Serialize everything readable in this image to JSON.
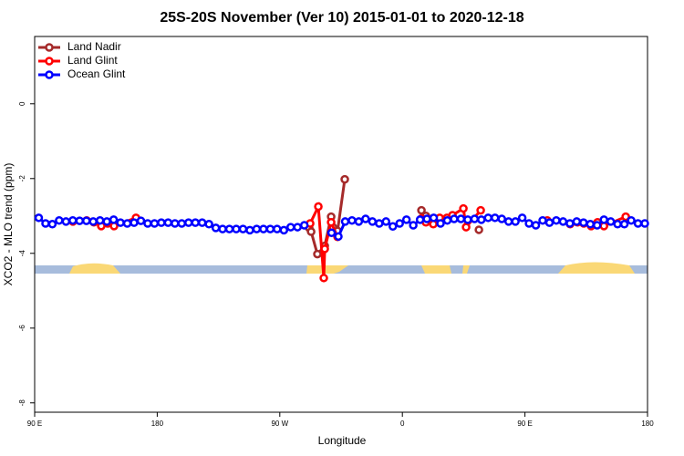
{
  "chart_data": {
    "type": "line",
    "title": "25S-20S November (Ver 10)   2015-01-01 to 2020-12-18",
    "x_label": "Longitude",
    "y_label": "XCO2 - MLO trend (ppm)",
    "xlim": [
      90,
      540
    ],
    "ylim": [
      -8.25,
      1.8
    ],
    "xticks": [
      {
        "value": 90,
        "label": "90 E"
      },
      180,
      {
        "value": 270,
        "label": "90 W"
      },
      {
        "value": 360,
        "label": "0"
      },
      {
        "value": 450,
        "label": "90 E"
      },
      {
        "value": 540,
        "label": "180"
      }
    ],
    "yticks": [
      -8,
      -6,
      -4,
      -2,
      0
    ],
    "legend": "upper left",
    "grid": false,
    "series": [
      {
        "name": "Land Nadir",
        "color": "#a52a2a",
        "x": [
          291.6,
          293,
          297.6,
          303,
          307.7,
          309,
          312.4,
          317.7,
          null,
          374,
          377.3,
          null,
          416.2
        ],
        "values": [
          -3.32,
          -3.42,
          -4.02,
          -3.8,
          -3.02,
          -3.3,
          -3.4,
          -2.02,
          null,
          -2.85,
          -3.0,
          null,
          -3.37
        ]
      },
      {
        "name": "Land Glint",
        "color": "#ff0000",
        "x": [
          118.1,
          128.2,
          133.5,
          138.9,
          143.6,
          148.3,
          164.4,
          null,
          292.3,
          298.3,
          302.3,
          303,
          307.7,
          312.4,
          null,
          374,
          377.3,
          382.7,
          387.4,
          392.7,
          396.8,
          404.8,
          406.8,
          417.5,
          null,
          466.4,
          483.2,
          488.5,
          493.2,
          498.6,
          503.3,
          508,
          524
        ],
        "values": [
          -3.15,
          -3.12,
          -3.17,
          -3.27,
          -3.2,
          -3.27,
          -3.05,
          null,
          -3.2,
          -2.75,
          -4.66,
          -3.88,
          -3.17,
          -3.56,
          null,
          -3.07,
          -3.17,
          -3.22,
          -3.05,
          -3.05,
          -2.98,
          -2.8,
          -3.3,
          -2.85,
          null,
          -3.12,
          -3.22,
          -3.17,
          -3.2,
          -3.27,
          -3.17,
          -3.27,
          -3.02
        ]
      },
      {
        "name": "Ocean Glint",
        "color": "#0000ff",
        "x": [
          93,
          98,
          103,
          108,
          113,
          118,
          123,
          128,
          133,
          138,
          143,
          148,
          153,
          158,
          163,
          168,
          173,
          178,
          183,
          188,
          193,
          198,
          203,
          208,
          213,
          218,
          223,
          228,
          233,
          238,
          243,
          248,
          253,
          258,
          263,
          268,
          273,
          278,
          283,
          288,
          null,
          308,
          313,
          318,
          323,
          328,
          333,
          338,
          343,
          348,
          353,
          358,
          363,
          368,
          373,
          378,
          383,
          388,
          393,
          398,
          403,
          408,
          413,
          418,
          423,
          428,
          433,
          438,
          443,
          448,
          453,
          458,
          463,
          468,
          473,
          478,
          483,
          488,
          493,
          498,
          503,
          508,
          513,
          518,
          523,
          528,
          533,
          538
        ],
        "values": [
          -3.05,
          -3.2,
          -3.22,
          -3.12,
          -3.15,
          -3.12,
          -3.13,
          -3.13,
          -3.15,
          -3.12,
          -3.15,
          -3.1,
          -3.18,
          -3.2,
          -3.18,
          -3.13,
          -3.2,
          -3.2,
          -3.18,
          -3.18,
          -3.2,
          -3.2,
          -3.18,
          -3.18,
          -3.18,
          -3.22,
          -3.32,
          -3.35,
          -3.35,
          -3.35,
          -3.35,
          -3.38,
          -3.35,
          -3.35,
          -3.35,
          -3.35,
          -3.38,
          -3.3,
          -3.3,
          -3.25,
          null,
          -3.45,
          -3.55,
          -3.15,
          -3.12,
          -3.15,
          -3.08,
          -3.15,
          -3.2,
          -3.15,
          -3.28,
          -3.2,
          -3.1,
          -3.25,
          -3.1,
          -3.08,
          -3.05,
          -3.2,
          -3.12,
          -3.08,
          -3.08,
          -3.1,
          -3.08,
          -3.1,
          -3.05,
          -3.05,
          -3.08,
          -3.15,
          -3.15,
          -3.05,
          -3.2,
          -3.25,
          -3.12,
          -3.18,
          -3.12,
          -3.15,
          -3.2,
          -3.15,
          -3.18,
          -3.22,
          -3.25,
          -3.1,
          -3.15,
          -3.22,
          -3.22,
          -3.12,
          -3.2,
          -3.2
        ]
      }
    ]
  }
}
